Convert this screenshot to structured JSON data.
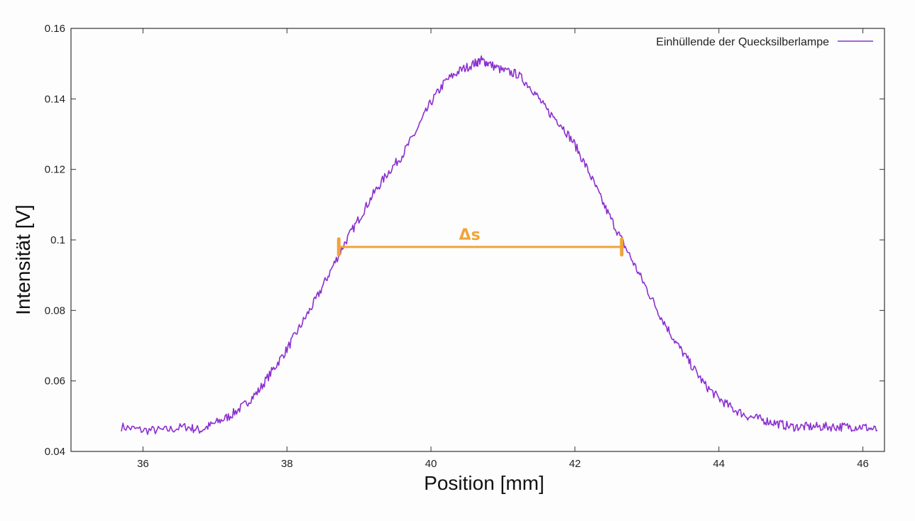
{
  "chart_data": {
    "type": "line",
    "title": "",
    "xlabel": "Position [mm]",
    "ylabel": "Intensität [V]",
    "xlim": [
      35,
      46.3
    ],
    "ylim": [
      0.04,
      0.16
    ],
    "x_ticks": [
      36,
      38,
      40,
      42,
      44,
      46
    ],
    "y_ticks": [
      0.04,
      0.06,
      0.08,
      0.1,
      0.12,
      0.14,
      0.16
    ],
    "y_tick_labels": [
      "0.04",
      "0.06",
      "0.08",
      "0.1",
      "0.12",
      "0.14",
      "0.16"
    ],
    "grid": false,
    "legend_position": "top-right",
    "series": [
      {
        "name": "Einhüllende der Quecksilberlampe",
        "color": "#8c2fd0",
        "x": [
          35.7,
          36.0,
          36.3,
          36.6,
          36.8,
          37.0,
          37.2,
          37.4,
          37.6,
          37.8,
          38.0,
          38.2,
          38.4,
          38.6,
          38.8,
          39.0,
          39.2,
          39.4,
          39.6,
          39.8,
          40.0,
          40.2,
          40.4,
          40.6,
          40.7,
          40.8,
          41.0,
          41.2,
          41.4,
          41.6,
          41.8,
          42.0,
          42.2,
          42.4,
          42.6,
          42.8,
          43.0,
          43.2,
          43.4,
          43.6,
          43.8,
          44.0,
          44.2,
          44.4,
          44.6,
          44.8,
          45.0,
          45.2,
          45.4,
          45.6,
          45.8,
          46.0,
          46.2
        ],
        "y": [
          0.047,
          0.046,
          0.046,
          0.047,
          0.046,
          0.048,
          0.05,
          0.053,
          0.057,
          0.063,
          0.069,
          0.076,
          0.083,
          0.091,
          0.099,
          0.106,
          0.113,
          0.119,
          0.124,
          0.131,
          0.139,
          0.145,
          0.148,
          0.15,
          0.151,
          0.15,
          0.148,
          0.147,
          0.143,
          0.137,
          0.133,
          0.127,
          0.119,
          0.11,
          0.102,
          0.094,
          0.086,
          0.078,
          0.071,
          0.065,
          0.059,
          0.055,
          0.052,
          0.05,
          0.049,
          0.048,
          0.047,
          0.047,
          0.047,
          0.047,
          0.047,
          0.047,
          0.046
        ]
      }
    ],
    "annotations": [
      {
        "label": "Δs",
        "type": "interval",
        "x_start": 38.72,
        "x_end": 42.65,
        "y": 0.098,
        "color": "#f0a43a"
      }
    ]
  }
}
